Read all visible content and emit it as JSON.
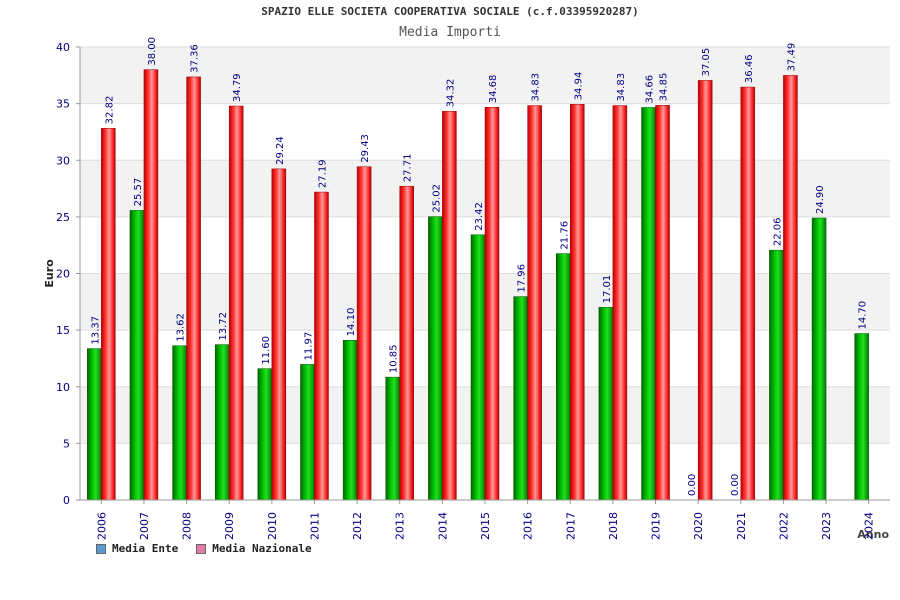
{
  "chart_data": {
    "type": "bar",
    "title": "SPAZIO ELLE SOCIETA COOPERATIVA SOCIALE (c.f.03395920287)",
    "subtitle": "Media Importi",
    "xlabel": "Anno",
    "ylabel": "Euro",
    "ylim": [
      0,
      40
    ],
    "yticks": [
      0,
      5,
      10,
      15,
      20,
      25,
      30,
      35,
      40
    ],
    "grid": true,
    "legend_position": "bottom-left",
    "categories": [
      "2006",
      "2007",
      "2008",
      "2009",
      "2010",
      "2011",
      "2012",
      "2013",
      "2014",
      "2015",
      "2016",
      "2017",
      "2018",
      "2019",
      "2020",
      "2021",
      "2022",
      "2023",
      "2024"
    ],
    "series": [
      {
        "name": "Media Ente",
        "color": "#00a000",
        "values": [
          13.37,
          25.57,
          13.62,
          13.72,
          11.6,
          11.97,
          14.1,
          10.85,
          25.02,
          23.42,
          17.96,
          21.76,
          17.01,
          34.66,
          0.0,
          0.0,
          22.06,
          24.9,
          14.7
        ],
        "labels": [
          "13.37",
          "25.57",
          "13.62",
          "13.72",
          "11.60",
          "11.97",
          "14.10",
          "10.85",
          "25.02",
          "23.42",
          "17.96",
          "21.76",
          "17.01",
          "34.66",
          "0.00",
          "0.00",
          "22.06",
          "24.90",
          "14.70"
        ]
      },
      {
        "name": "Media Nazionale",
        "color": "#e82020",
        "values": [
          32.82,
          38.0,
          37.36,
          34.79,
          29.24,
          27.19,
          29.43,
          27.71,
          34.32,
          34.68,
          34.83,
          34.94,
          34.83,
          34.85,
          37.05,
          36.46,
          37.49,
          null,
          null
        ],
        "labels": [
          "32.82",
          "38.00",
          "37.36",
          "34.79",
          "29.24",
          "27.19",
          "29.43",
          "27.71",
          "34.32",
          "34.68",
          "34.83",
          "34.94",
          "34.83",
          "34.85",
          "37.05",
          "36.46",
          "37.49",
          "",
          ""
        ]
      }
    ],
    "legend": [
      {
        "name": "Media Ente",
        "swatch": "#5b9bd5"
      },
      {
        "name": "Media Nazionale",
        "swatch": "#e37ca8"
      }
    ]
  }
}
